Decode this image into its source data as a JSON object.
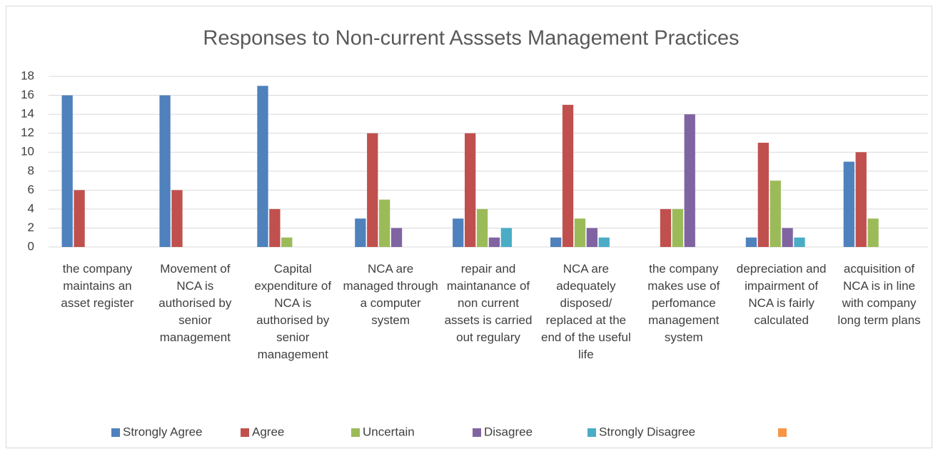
{
  "chart_data": {
    "type": "bar",
    "title": "Responses to Non-current Asssets Management Practices",
    "categories": [
      "the company maintains an asset register",
      "Movement of NCA is authorised by senior management",
      "Capital expenditure of NCA is authorised by senior management",
      "NCA are managed through a computer system",
      "repair and maintanance of non current assets is carried out regulary",
      "NCA are adequately disposed/ replaced at the end of the useful life",
      "the company makes use of perfomance management system",
      "depreciation and impairment of NCA is fairly calculated",
      "acquisition of NCA is in line with company long term plans"
    ],
    "series": [
      {
        "name": "Strongly Agree",
        "color": "#4f81bd",
        "values": [
          16,
          16,
          17,
          3,
          3,
          1,
          0,
          1,
          9
        ]
      },
      {
        "name": "Agree",
        "color": "#c0504d",
        "values": [
          6,
          6,
          4,
          12,
          12,
          15,
          4,
          11,
          10
        ]
      },
      {
        "name": "Uncertain",
        "color": "#9bbb59",
        "values": [
          0,
          0,
          1,
          5,
          4,
          3,
          4,
          7,
          3
        ]
      },
      {
        "name": "Disagree",
        "color": "#8064a2",
        "values": [
          0,
          0,
          0,
          2,
          1,
          2,
          14,
          2,
          0
        ]
      },
      {
        "name": "Strongly Disagree",
        "color": "#4bacc6",
        "values": [
          0,
          0,
          0,
          0,
          2,
          1,
          0,
          1,
          0
        ]
      },
      {
        "color": "#f79646",
        "values": [
          null,
          null,
          null,
          null,
          null,
          null,
          null,
          null,
          null
        ]
      }
    ],
    "ylim": [
      0,
      18
    ],
    "yticks": [
      0,
      2,
      4,
      6,
      8,
      10,
      12,
      14,
      16,
      18
    ],
    "grid": true,
    "legend": "bottom"
  }
}
